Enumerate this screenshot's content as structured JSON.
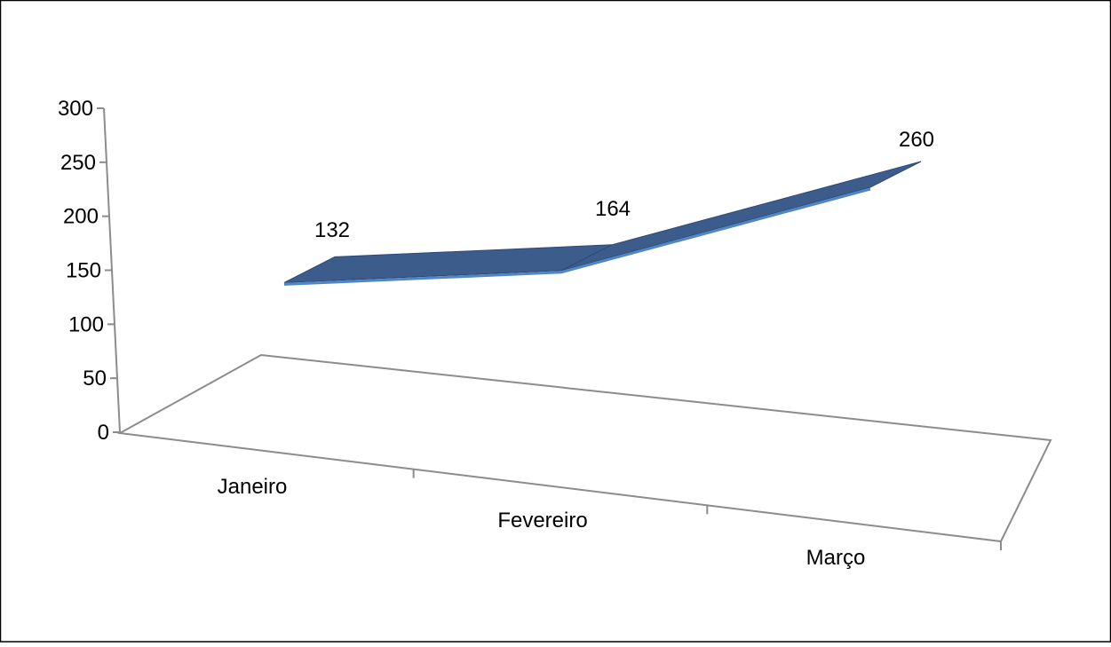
{
  "chart_data": {
    "type": "line",
    "style": "3d-ribbon",
    "title": "",
    "xlabel": "",
    "ylabel": "",
    "categories": [
      "Janeiro",
      "Fevereiro",
      "Março"
    ],
    "series": [
      {
        "values": [
          132,
          164,
          260
        ]
      }
    ],
    "data_labels": [
      "132",
      "164",
      "260"
    ],
    "ylim": [
      0,
      300
    ],
    "yticks": [
      0,
      50,
      100,
      150,
      200,
      250,
      300
    ],
    "ytick_labels": [
      "0",
      "50",
      "100",
      "150",
      "200",
      "250",
      "300"
    ],
    "legend": "none",
    "grid": false,
    "colors": {
      "ribbon_top": "#3c5c8c",
      "ribbon_edge": "#4f86c6",
      "ribbon_side": "#2d4a75",
      "axis": "#8c8c8c",
      "frame": "#000000"
    }
  }
}
